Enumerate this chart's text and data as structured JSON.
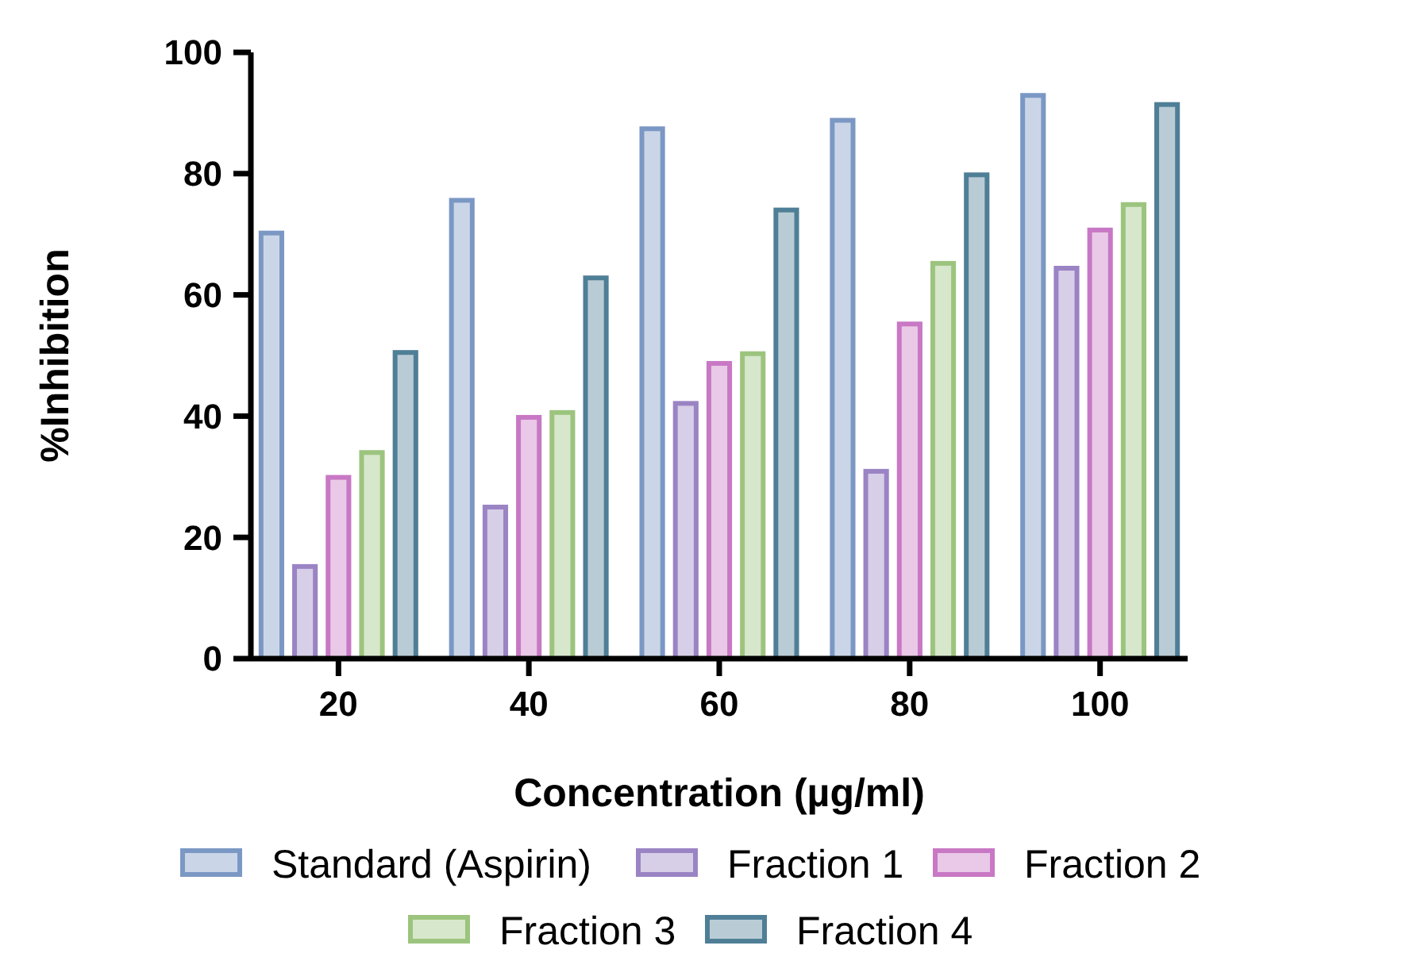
{
  "chart_data": {
    "type": "bar",
    "xlabel": "Concentration (µg/ml)",
    "ylabel": "%Inhibition",
    "categories": [
      "20",
      "40",
      "60",
      "80",
      "100"
    ],
    "series": [
      {
        "name": "Standard (Aspirin)",
        "color": "#7b98c4",
        "values": [
          70.2,
          75.6,
          87.4,
          88.8,
          92.9
        ]
      },
      {
        "name": "Fraction 1",
        "color": "#9a84c4",
        "values": [
          15.2,
          25,
          42.1,
          30.9,
          64.4
        ]
      },
      {
        "name": "Fraction 2",
        "color": "#c878c4",
        "values": [
          29.9,
          39.8,
          48.7,
          55.2,
          70.7
        ]
      },
      {
        "name": "Fraction 3",
        "color": "#9cc47e",
        "values": [
          34,
          40.6,
          50.3,
          65.2,
          74.9
        ]
      },
      {
        "name": "Fraction 4",
        "color": "#4f7f96",
        "values": [
          50.5,
          62.8,
          74,
          79.8,
          91.4
        ]
      }
    ],
    "ylim": [
      0,
      100
    ],
    "yticks": [
      0,
      20,
      40,
      60,
      80,
      100
    ],
    "legend": "bottom"
  }
}
